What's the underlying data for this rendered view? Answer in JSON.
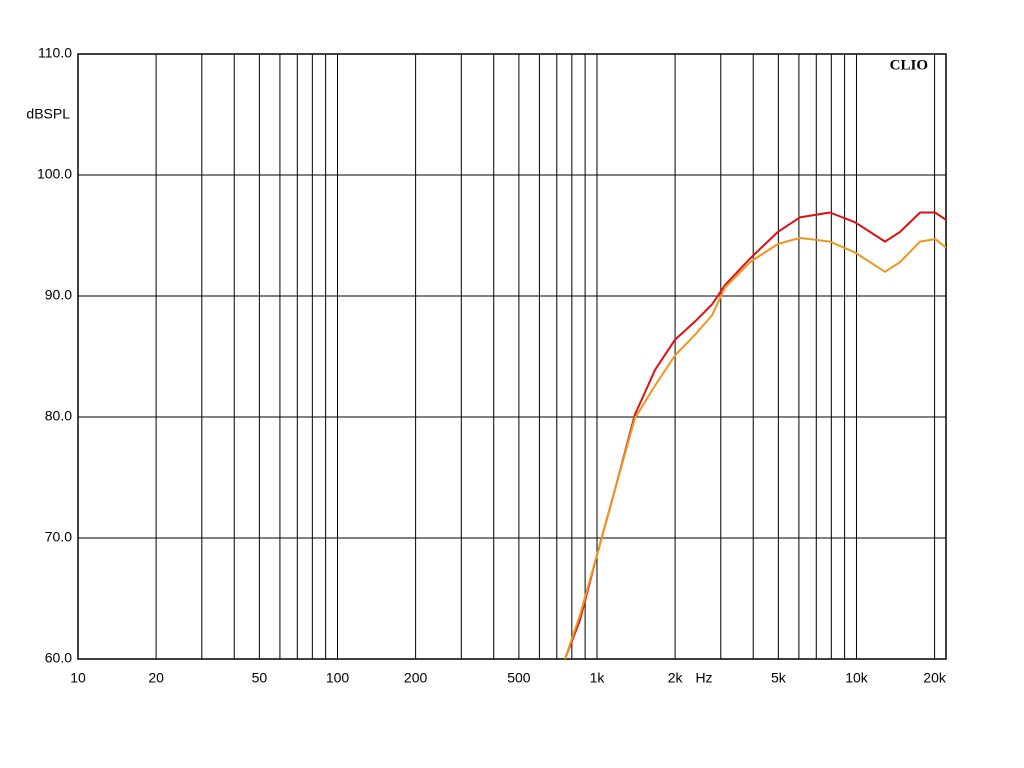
{
  "chart_data": {
    "type": "line",
    "title": "CLIO",
    "y_label": "dBSPL",
    "x_label": "Hz",
    "log_x": true,
    "x": [
      753,
      859,
      1000,
      1173,
      1400,
      1675,
      2000,
      2388,
      2775,
      3113,
      3890,
      4980,
      6050,
      7900,
      9860,
      11270,
      12880,
      14720,
      17580,
      20090,
      22130
    ],
    "series": [
      {
        "color": "#e01010",
        "values": [
          60,
          63.2,
          68.6,
          74.0,
          80.2,
          83.9,
          86.4,
          87.9,
          89.3,
          90.9,
          93.1,
          95.3,
          96.5,
          96.9,
          96.1,
          95.3,
          94.5,
          95.3,
          96.9,
          96.9,
          96.3
        ]
      },
      {
        "color": "#f0961e",
        "values": [
          60,
          63.6,
          68.6,
          74.0,
          79.9,
          82.6,
          85.1,
          86.8,
          88.4,
          90.7,
          92.8,
          94.3,
          94.8,
          94.5,
          93.6,
          92.8,
          92.0,
          92.8,
          94.5,
          94.7,
          94.0
        ]
      }
    ],
    "xlim": [
      10,
      22130
    ],
    "ylim": [
      60,
      110
    ],
    "xticks": [
      10,
      20,
      50,
      100,
      200,
      500,
      {
        "value": 1000,
        "label": "1k"
      },
      {
        "value": 2000,
        "label": "2k"
      },
      {
        "value": 5000,
        "label": "5k"
      },
      {
        "value": 10000,
        "label": "10k"
      },
      {
        "value": 20000,
        "label": "20k"
      }
    ],
    "xgrid_minor": [
      30,
      40,
      60,
      70,
      80,
      90,
      300,
      400,
      600,
      700,
      800,
      900,
      3000,
      4000,
      6000,
      7000,
      8000,
      9000
    ],
    "yticks": [
      {
        "value": 60,
        "label": "60.0"
      },
      {
        "value": 70,
        "label": "70.0"
      },
      {
        "value": 80,
        "label": "80.0"
      },
      {
        "value": 90,
        "label": "90.0"
      },
      {
        "value": 100,
        "label": "100.0"
      },
      {
        "value": 110,
        "label": "110.0"
      }
    ],
    "grid": true
  }
}
